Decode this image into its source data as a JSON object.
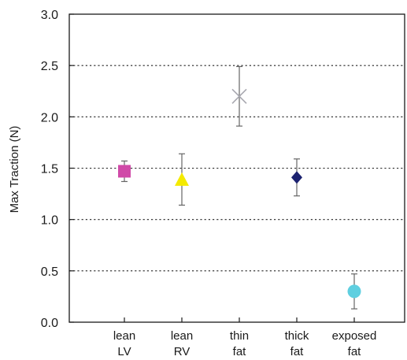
{
  "chart_data": {
    "type": "scatter",
    "title": "",
    "xlabel": "",
    "ylabel": "Max Traction (N)",
    "ylim": [
      0,
      3.0
    ],
    "yticks": [
      "0.0",
      "0.5",
      "1.0",
      "1.5",
      "2.0",
      "2.5",
      "3.0"
    ],
    "grid": "horizontal dotted",
    "categories": [
      {
        "line1": "lean",
        "line2": "LV"
      },
      {
        "line1": "lean",
        "line2": "RV"
      },
      {
        "line1": "thin",
        "line2": "fat"
      },
      {
        "line1": "thick",
        "line2": "fat"
      },
      {
        "line1": "exposed",
        "line2": "fat"
      }
    ],
    "points": [
      {
        "category": "lean LV",
        "value": 1.47,
        "err_low": 1.37,
        "err_high": 1.57,
        "marker": "square",
        "color": "#d04aa8"
      },
      {
        "category": "lean RV",
        "value": 1.39,
        "err_low": 1.14,
        "err_high": 1.64,
        "marker": "triangle",
        "color": "#f4ea00"
      },
      {
        "category": "thin fat",
        "value": 2.2,
        "err_low": 1.91,
        "err_high": 2.49,
        "marker": "x",
        "color": "#a8a8b0"
      },
      {
        "category": "thick fat",
        "value": 1.41,
        "err_low": 1.23,
        "err_high": 1.59,
        "marker": "diamond",
        "color": "#1c2270"
      },
      {
        "category": "exposed fat",
        "value": 0.3,
        "err_low": 0.13,
        "err_high": 0.47,
        "marker": "circle",
        "color": "#5fcfe0"
      }
    ]
  }
}
